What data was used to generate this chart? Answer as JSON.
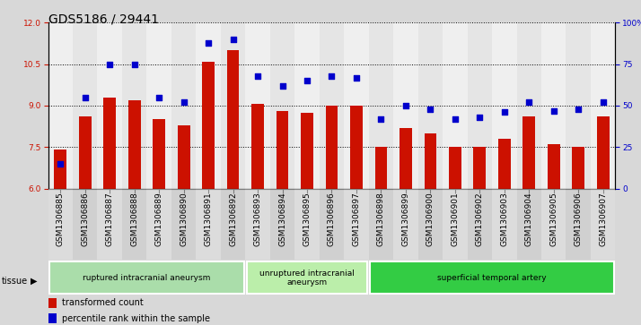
{
  "title": "GDS5186 / 29441",
  "samples": [
    "GSM1306885",
    "GSM1306886",
    "GSM1306887",
    "GSM1306888",
    "GSM1306889",
    "GSM1306890",
    "GSM1306891",
    "GSM1306892",
    "GSM1306893",
    "GSM1306894",
    "GSM1306895",
    "GSM1306896",
    "GSM1306897",
    "GSM1306898",
    "GSM1306899",
    "GSM1306900",
    "GSM1306901",
    "GSM1306902",
    "GSM1306903",
    "GSM1306904",
    "GSM1306905",
    "GSM1306906",
    "GSM1306907"
  ],
  "bar_values": [
    7.4,
    8.6,
    9.3,
    9.2,
    8.5,
    8.3,
    10.6,
    11.0,
    9.05,
    8.8,
    8.75,
    9.0,
    9.0,
    7.5,
    8.2,
    8.0,
    7.5,
    7.5,
    7.8,
    8.6,
    7.6,
    7.5,
    8.6
  ],
  "dot_values": [
    15,
    55,
    75,
    75,
    55,
    52,
    88,
    90,
    68,
    62,
    65,
    68,
    67,
    42,
    50,
    48,
    42,
    43,
    46,
    52,
    47,
    48,
    52
  ],
  "ylim_left": [
    6,
    12
  ],
  "ylim_right": [
    0,
    100
  ],
  "yticks_left": [
    6,
    7.5,
    9,
    10.5,
    12
  ],
  "yticks_right": [
    0,
    25,
    50,
    75,
    100
  ],
  "bar_color": "#CC1100",
  "dot_color": "#0000CC",
  "bar_bottom": 6,
  "groups": [
    {
      "label": "ruptured intracranial aneurysm",
      "start": 0,
      "end": 8,
      "color": "#AADDAA"
    },
    {
      "label": "unruptured intracranial\naneurysm",
      "start": 8,
      "end": 13,
      "color": "#BBEEAA"
    },
    {
      "label": "superficial temporal artery",
      "start": 13,
      "end": 23,
      "color": "#33CC44"
    }
  ],
  "legend_bar_label": "transformed count",
  "legend_dot_label": "percentile rank within the sample",
  "tissue_label": "tissue",
  "fig_bg_color": "#D8D8D8",
  "plot_bg_color": "#FFFFFF",
  "col_bg_even": "#E0E0E0",
  "col_bg_odd": "#CCCCCC",
  "title_fontsize": 10,
  "tick_fontsize": 6.5,
  "label_fontsize": 7
}
